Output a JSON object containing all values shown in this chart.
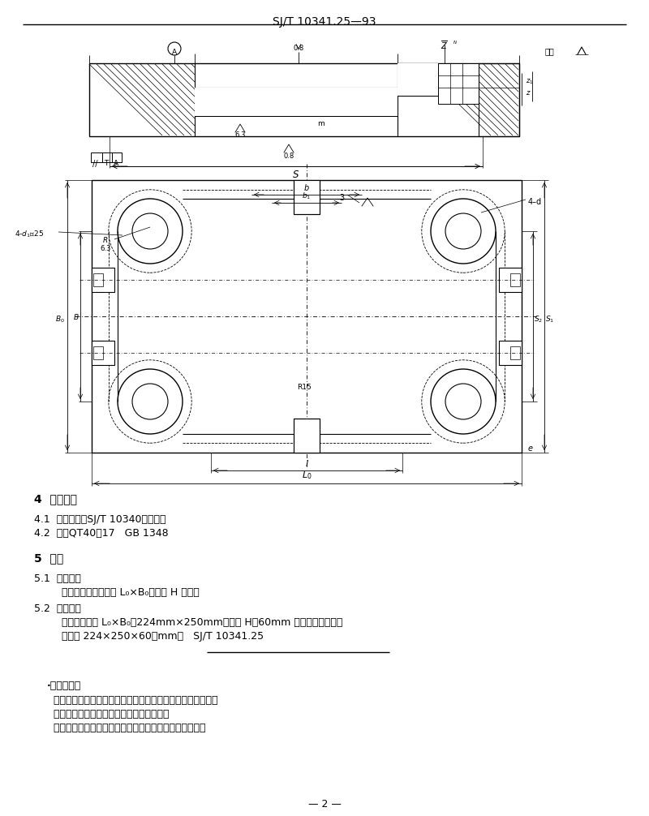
{
  "title": "SJ/T 10341.25—93",
  "page_number": "2",
  "background_color": "#ffffff",
  "text_color": "#000000",
  "sections": {
    "section4_header": "4  技术要求",
    "s4_1": "4.1  技术条件按SJ/T 10340的规定。",
    "s4_2": "4.2  材料QT40－17   GB 1348",
    "section5_header": "5  标记",
    "s5_1_header": "5.1  标记方法",
    "s5_1_body": "    标记由模架工作范围 L₀×B₀，厚度 H 表示。",
    "s5_2_header": "5.2  标记示例",
    "s5_2_body1": "    模架工作范围 L₀×B₀＝224mm×250mm，厚度 H＝60mm 的四导柱上模座；",
    "s5_2_body2": "    上模座 224×250×60（mm）   SJ/T 10341.25",
    "appendix_dot": "·附加说明：",
    "appendix_1": "  本标准由中华人民共和国电子工业部科技与质量监督司提出。",
    "appendix_2": "  本标准由全国模具标准化技术委员会弄口。",
    "appendix_3": "  本标准由国营七三三厂、电子部标准化研究所负责起草。"
  },
  "font_cjk": "WenQuanYi Micro Hei",
  "font_fallback": "DejaVu Sans"
}
